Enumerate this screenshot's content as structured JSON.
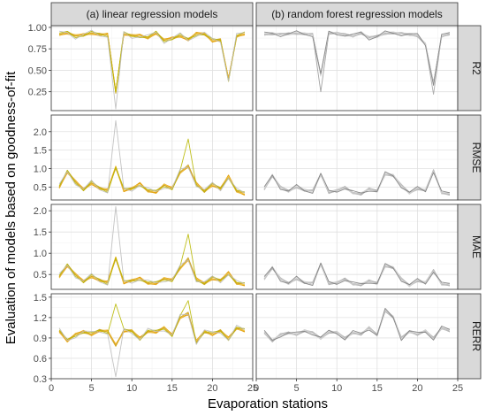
{
  "chart_data": {
    "type": "line",
    "x_label": "Evaporation stations",
    "y_label": "Evaluation of models based on goodness-of-fit",
    "columns": [
      "(a) linear regression models",
      "(b) random forest regression models"
    ],
    "rows": [
      "R2",
      "RMSE",
      "MAE",
      "RERR"
    ],
    "x_ticks": [
      0,
      5,
      10,
      15,
      20,
      25
    ],
    "x_range": [
      0,
      25
    ],
    "stations": [
      1,
      2,
      3,
      4,
      5,
      6,
      7,
      8,
      9,
      10,
      11,
      12,
      13,
      14,
      15,
      16,
      17,
      18,
      19,
      20,
      21,
      22,
      23,
      24
    ],
    "row_axes": {
      "R2": {
        "ylim": [
          0.03,
          1.02
        ],
        "ticks": [
          0.25,
          0.5,
          0.75,
          1.0
        ],
        "tick_labels": [
          "0.25",
          "0.50",
          "0.75",
          "1.00"
        ]
      },
      "RMSE": {
        "ylim": [
          0.15,
          2.45
        ],
        "ticks": [
          0.5,
          1.0,
          1.5,
          2.0
        ],
        "tick_labels": [
          "0.5",
          "1.0",
          "1.5",
          "2.0"
        ]
      },
      "MAE": {
        "ylim": [
          0.15,
          2.15
        ],
        "ticks": [
          0.5,
          1.0,
          1.5,
          2.0
        ],
        "tick_labels": [
          "0.5",
          "1.0",
          "1.5",
          "2.0"
        ]
      },
      "RERR": {
        "ylim": [
          0.3,
          1.55
        ],
        "ticks": [
          0.3,
          0.6,
          0.9,
          1.2,
          1.5
        ],
        "tick_labels": [
          "0.3",
          "0.6",
          "0.9",
          "1.2",
          "1.5"
        ]
      }
    },
    "colors": {
      "panel_bg": "#ffffff",
      "grid_major": "#e0e0e0",
      "grid_minor": "#f0f0f0",
      "strip_bg": "#d9d9d9",
      "border": "#333333",
      "lr_lines": [
        "#e69f00",
        "#f0b400",
        "#e8a317",
        "#f5c242",
        "#d99100",
        "#f2c84b",
        "#c9a227",
        "#b8b800",
        "#bdbdbd"
      ],
      "rf_lines": [
        "#8c8c8c",
        "#999999",
        "#a6a6a6",
        "#b3b3b3",
        "#c0c0c0",
        "#cccccc",
        "#d4d4d4",
        "#7f7f7f"
      ]
    },
    "base_profiles": {
      "lr": {
        "R2": [
          0.92,
          0.93,
          0.9,
          0.92,
          0.93,
          0.91,
          0.92,
          0.25,
          0.92,
          0.9,
          0.91,
          0.88,
          0.93,
          0.85,
          0.88,
          0.9,
          0.85,
          0.93,
          0.93,
          0.84,
          0.85,
          0.4,
          0.9,
          0.92
        ],
        "RMSE": [
          0.5,
          0.9,
          0.65,
          0.45,
          0.6,
          0.45,
          0.42,
          1.05,
          0.4,
          0.45,
          0.6,
          0.4,
          0.35,
          0.55,
          0.48,
          0.9,
          1.05,
          0.6,
          0.4,
          0.55,
          0.45,
          0.8,
          0.4,
          0.3
        ],
        "MAE": [
          0.45,
          0.7,
          0.5,
          0.35,
          0.45,
          0.35,
          0.32,
          0.9,
          0.3,
          0.35,
          0.42,
          0.3,
          0.28,
          0.4,
          0.38,
          0.65,
          0.85,
          0.4,
          0.3,
          0.4,
          0.35,
          0.55,
          0.3,
          0.25
        ],
        "RERR": [
          1.0,
          0.85,
          0.95,
          1.0,
          0.95,
          1.0,
          1.0,
          0.8,
          1.0,
          1.0,
          0.9,
          1.0,
          0.98,
          1.05,
          0.95,
          1.2,
          1.25,
          0.85,
          1.0,
          0.95,
          1.0,
          0.9,
          1.05,
          1.0
        ]
      },
      "rf": {
        "R2": [
          0.92,
          0.92,
          0.92,
          0.93,
          0.93,
          0.92,
          0.92,
          0.45,
          0.93,
          0.93,
          0.92,
          0.9,
          0.93,
          0.88,
          0.9,
          0.93,
          0.93,
          0.93,
          0.92,
          0.9,
          0.8,
          0.35,
          0.9,
          0.92
        ],
        "RMSE": [
          0.45,
          0.8,
          0.5,
          0.4,
          0.5,
          0.4,
          0.4,
          0.85,
          0.35,
          0.4,
          0.5,
          0.35,
          0.3,
          0.45,
          0.4,
          0.85,
          0.8,
          0.55,
          0.35,
          0.45,
          0.4,
          0.95,
          0.35,
          0.3
        ],
        "MAE": [
          0.4,
          0.65,
          0.4,
          0.3,
          0.4,
          0.3,
          0.3,
          0.75,
          0.28,
          0.3,
          0.4,
          0.28,
          0.25,
          0.35,
          0.3,
          0.7,
          0.65,
          0.4,
          0.25,
          0.35,
          0.3,
          0.6,
          0.28,
          0.25
        ],
        "RERR": [
          0.98,
          0.85,
          0.95,
          0.98,
          0.95,
          1.0,
          0.98,
          0.9,
          0.98,
          0.98,
          0.9,
          0.98,
          0.95,
          1.05,
          0.95,
          1.3,
          1.2,
          0.9,
          1.0,
          0.95,
          1.0,
          0.9,
          1.05,
          1.0
        ]
      }
    },
    "model_variations": {
      "lr": [
        {
          "scale": 0.0,
          "phase": 0.0
        },
        {
          "scale": 0.05,
          "phase": 0.7
        },
        {
          "scale": 0.08,
          "phase": 1.3
        },
        {
          "scale": 0.1,
          "phase": 2.1
        },
        {
          "scale": 0.13,
          "phase": 2.9
        },
        {
          "scale": 0.16,
          "phase": 3.6
        },
        {
          "scale": 0.2,
          "phase": 4.4
        },
        {
          "scale": 0.25,
          "phase": 5.1
        },
        {
          "scale": 0.32,
          "phase": 5.8
        }
      ],
      "rf": [
        {
          "scale": 0.0,
          "phase": 0.0
        },
        {
          "scale": 0.04,
          "phase": 0.9
        },
        {
          "scale": 0.07,
          "phase": 1.7
        },
        {
          "scale": 0.1,
          "phase": 2.5
        },
        {
          "scale": 0.13,
          "phase": 3.3
        },
        {
          "scale": 0.16,
          "phase": 4.1
        },
        {
          "scale": 0.2,
          "phase": 4.9
        },
        {
          "scale": 0.25,
          "phase": 5.6
        }
      ]
    },
    "extra_peaks": {
      "lr": {
        "R2": [
          {
            "model": 8,
            "station": 8,
            "value": 0.05
          }
        ],
        "RMSE": [
          {
            "model": 8,
            "station": 8,
            "value": 2.3
          },
          {
            "model": 7,
            "station": 17,
            "value": 1.8
          }
        ],
        "MAE": [
          {
            "model": 8,
            "station": 8,
            "value": 2.1
          },
          {
            "model": 7,
            "station": 17,
            "value": 1.45
          }
        ],
        "RERR": [
          {
            "model": 8,
            "station": 8,
            "value": 0.33
          },
          {
            "model": 7,
            "station": 8,
            "value": 1.4
          },
          {
            "model": 7,
            "station": 17,
            "value": 1.45
          }
        ]
      },
      "rf": {
        "R2": [
          {
            "model": 1,
            "station": 8,
            "value": 0.25
          },
          {
            "model": 2,
            "station": 22,
            "value": 0.22
          }
        ],
        "RMSE": [],
        "MAE": [],
        "RERR": []
      }
    }
  }
}
